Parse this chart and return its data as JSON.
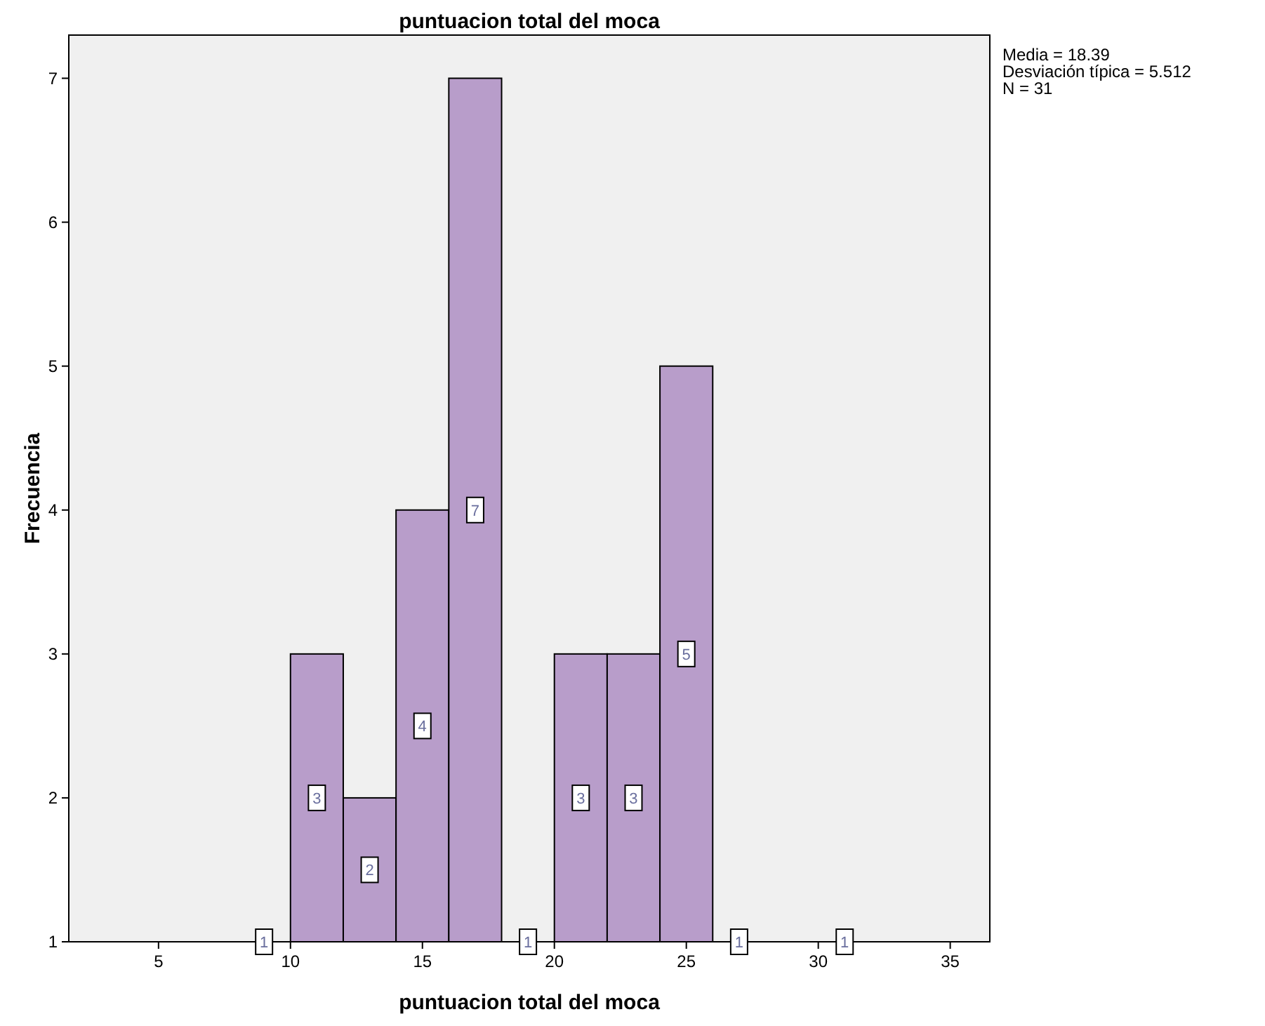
{
  "chart_data": {
    "type": "histogram",
    "title": "puntuacion total del moca",
    "xlabel": "puntuacion total del moca",
    "ylabel": "Frecuencia",
    "bins": [
      8,
      10,
      12,
      14,
      16,
      18,
      20,
      22,
      24,
      26,
      28,
      30,
      32
    ],
    "values": [
      1,
      3,
      2,
      4,
      7,
      1,
      3,
      3,
      5,
      1,
      null,
      1
    ],
    "color": "#b89dca",
    "data_labels": true,
    "xlim": [
      1.6,
      36.5
    ],
    "xticks": [
      5,
      10,
      15,
      20,
      25,
      30,
      35
    ],
    "ylim": [
      1,
      7.3
    ],
    "yticks": [
      1,
      2,
      3,
      4,
      5,
      6,
      7
    ],
    "grid": false,
    "annotations": [
      "Media = 18.39",
      "Desviación típica = 5.512",
      "N = 31"
    ]
  }
}
